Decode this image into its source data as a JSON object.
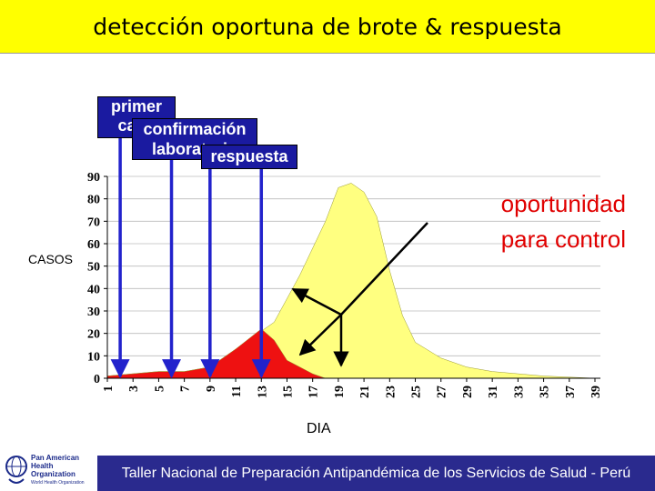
{
  "title": "detección oportuna de brote & respuesta",
  "footer": "Taller Nacional de Preparación Antipandémica de los Servicios de Salud - Perú",
  "logo": {
    "line1": "Pan American",
    "line2": "Health",
    "line3": "Organization",
    "line4": "World Health Organization",
    "icon": "globe-emblem-icon"
  },
  "labels": {
    "primer_caso": "primer caso",
    "confirmacion": "confirmación laboratorio",
    "respuesta": "respuesta",
    "oportunidad_1": "oportunidad",
    "oportunidad_2": "para control"
  },
  "colors": {
    "yellow_fill": "#ffff80",
    "red_fill": "#ee1111",
    "marker_blue": "#2222cc",
    "title_bg": "#ffff00",
    "footer_bg": "#2a2a8e"
  },
  "chart_data": {
    "type": "area",
    "title": "",
    "xlabel": "DIA",
    "ylabel": "CASOS",
    "xlim": [
      1,
      39
    ],
    "ylim": [
      0,
      90
    ],
    "x_ticks": [
      1,
      3,
      5,
      7,
      9,
      11,
      13,
      15,
      17,
      19,
      21,
      23,
      25,
      27,
      29,
      31,
      33,
      35,
      37,
      39
    ],
    "y_ticks": [
      0,
      10,
      20,
      30,
      40,
      50,
      60,
      70,
      80,
      90
    ],
    "series": [
      {
        "name": "",
        "color": "#ffff80",
        "x": [
          1,
          3,
          5,
          7,
          9,
          11,
          13,
          14,
          16,
          18,
          19,
          20,
          21,
          22,
          23,
          24,
          25,
          27,
          29,
          31,
          33,
          35,
          37,
          39
        ],
        "values": [
          1,
          2,
          3,
          3,
          5,
          13,
          21,
          25,
          46,
          70,
          85,
          87,
          83,
          72,
          48,
          28,
          16,
          9,
          5,
          3,
          2,
          1,
          0.5,
          0
        ]
      },
      {
        "name": "",
        "color": "#ee1111",
        "x": [
          1,
          3,
          5,
          7,
          9,
          11,
          13,
          14,
          15,
          16,
          17,
          18
        ],
        "values": [
          1,
          2,
          3,
          3,
          5,
          13,
          22,
          17,
          8,
          5,
          2,
          0
        ]
      }
    ],
    "markers": [
      {
        "name": "primer-caso",
        "day": 2
      },
      {
        "name": "confirmacion",
        "day": 6
      },
      {
        "name": "confirmacion-2",
        "day": 9
      },
      {
        "name": "respuesta",
        "day": 13
      }
    ],
    "annotation": "oportunidad para control"
  }
}
